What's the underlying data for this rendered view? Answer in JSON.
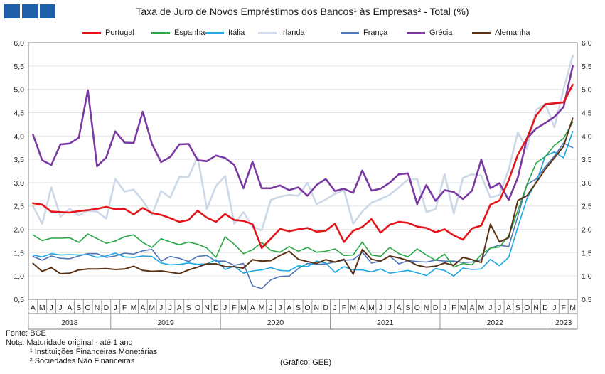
{
  "title_text": "Taxa de Juro de Novos Empréstimos dos Bancos¹ às Empresas² - Total (%)",
  "logo_colors": [
    "#1f5fa8",
    "#1f5fa8",
    "#1f5fa8"
  ],
  "notes": {
    "source": "Fonte:  BCE",
    "note": "Nota:  Maturidade original - até 1 ano",
    "footnote1": "¹ Instituições Financeiras Monetárias",
    "footnote2": "² Sociedades Não Financeiras",
    "credit": "(Gráfico: GEE)"
  },
  "chart_data": {
    "type": "line",
    "title": "Taxa de Juro de Novos Empréstimos dos Bancos¹ às Empresas² - Total (%)",
    "ylim": [
      0.5,
      6.0
    ],
    "yticks": [
      "0,5",
      "1,0",
      "1,5",
      "2,0",
      "2,5",
      "3,0",
      "3,5",
      "4,0",
      "4,5",
      "5,0",
      "5,5",
      "6,0"
    ],
    "ytick_values": [
      0.5,
      1.0,
      1.5,
      2.0,
      2.5,
      3.0,
      3.5,
      4.0,
      4.5,
      5.0,
      5.5,
      6.0
    ],
    "grid": true,
    "legend_position": "top",
    "months": [
      "A",
      "M",
      "J",
      "J",
      "A",
      "S",
      "O",
      "N",
      "D",
      "J",
      "F",
      "M",
      "A",
      "M",
      "J",
      "J",
      "A",
      "S",
      "O",
      "N",
      "D",
      "J",
      "F",
      "M",
      "A",
      "M",
      "J",
      "J",
      "A",
      "S",
      "O",
      "N",
      "D",
      "J",
      "F",
      "M",
      "A",
      "M",
      "J",
      "J",
      "A",
      "S",
      "O",
      "N",
      "D",
      "J",
      "F",
      "M",
      "A",
      "M",
      "J",
      "J",
      "A",
      "S",
      "O",
      "N",
      "D",
      "J",
      "F",
      "M"
    ],
    "years": [
      {
        "label": "2018",
        "start": 0,
        "end": 8
      },
      {
        "label": "2019",
        "start": 9,
        "end": 20
      },
      {
        "label": "2020",
        "start": 21,
        "end": 32
      },
      {
        "label": "2021",
        "start": 33,
        "end": 44
      },
      {
        "label": "2022",
        "start": 45,
        "end": 56
      },
      {
        "label": "2023",
        "start": 57,
        "end": 59
      }
    ],
    "x": [
      "2018-04",
      "2018-05",
      "2018-06",
      "2018-07",
      "2018-08",
      "2018-09",
      "2018-10",
      "2018-11",
      "2018-12",
      "2019-01",
      "2019-02",
      "2019-03",
      "2019-04",
      "2019-05",
      "2019-06",
      "2019-07",
      "2019-08",
      "2019-09",
      "2019-10",
      "2019-11",
      "2019-12",
      "2020-01",
      "2020-02",
      "2020-03",
      "2020-04",
      "2020-05",
      "2020-06",
      "2020-07",
      "2020-08",
      "2020-09",
      "2020-10",
      "2020-11",
      "2020-12",
      "2021-01",
      "2021-02",
      "2021-03",
      "2021-04",
      "2021-05",
      "2021-06",
      "2021-07",
      "2021-08",
      "2021-09",
      "2021-10",
      "2021-11",
      "2021-12",
      "2022-01",
      "2022-02",
      "2022-03",
      "2022-04",
      "2022-05",
      "2022-06",
      "2022-07",
      "2022-08",
      "2022-09",
      "2022-10",
      "2022-11",
      "2022-12",
      "2023-01",
      "2023-02",
      "2023-03"
    ],
    "series": [
      {
        "name": "Portugal",
        "color": "#e3151a",
        "width": 2.6,
        "values": [
          2.56,
          2.53,
          2.38,
          2.37,
          2.36,
          2.39,
          2.41,
          2.44,
          2.48,
          2.43,
          2.44,
          2.32,
          2.46,
          2.35,
          2.31,
          2.24,
          2.16,
          2.2,
          2.4,
          2.25,
          2.16,
          2.33,
          2.2,
          2.18,
          2.11,
          1.6,
          1.8,
          2.01,
          1.96,
          2.0,
          2.03,
          1.95,
          1.97,
          2.12,
          1.73,
          1.97,
          2.05,
          2.22,
          1.93,
          2.1,
          2.16,
          2.14,
          2.06,
          2.03,
          1.94,
          2.0,
          1.87,
          1.78,
          2.02,
          2.08,
          2.53,
          2.62,
          3.05,
          3.6,
          3.95,
          4.44,
          4.68,
          4.7,
          4.72,
          5.1
        ]
      },
      {
        "name": "Espanha",
        "color": "#28a745",
        "width": 1.6,
        "values": [
          1.88,
          1.76,
          1.81,
          1.81,
          1.82,
          1.72,
          1.9,
          1.8,
          1.7,
          1.75,
          1.84,
          1.88,
          1.72,
          1.61,
          1.8,
          1.73,
          1.67,
          1.73,
          1.68,
          1.6,
          1.4,
          1.84,
          1.68,
          1.48,
          1.56,
          1.72,
          1.55,
          1.51,
          1.63,
          1.53,
          1.61,
          1.51,
          1.53,
          1.58,
          1.44,
          1.45,
          1.73,
          1.45,
          1.42,
          1.61,
          1.48,
          1.41,
          1.58,
          1.45,
          1.34,
          1.47,
          1.19,
          1.27,
          1.24,
          1.46,
          1.6,
          1.62,
          1.86,
          2.4,
          2.96,
          3.42,
          3.56,
          3.8,
          3.95,
          4.3
        ]
      },
      {
        "name": "Itália",
        "color": "#1ba7e0",
        "width": 1.6,
        "values": [
          1.45,
          1.41,
          1.48,
          1.45,
          1.46,
          1.45,
          1.46,
          1.4,
          1.43,
          1.49,
          1.41,
          1.4,
          1.43,
          1.42,
          1.28,
          1.24,
          1.25,
          1.28,
          1.25,
          1.26,
          1.35,
          1.14,
          1.21,
          1.06,
          1.11,
          1.13,
          1.18,
          1.12,
          1.11,
          1.22,
          1.2,
          1.32,
          1.28,
          1.08,
          1.2,
          1.13,
          1.13,
          1.09,
          1.15,
          1.06,
          1.09,
          1.12,
          1.07,
          1.01,
          1.16,
          1.12,
          1.0,
          1.17,
          1.14,
          1.15,
          1.36,
          1.22,
          1.4,
          2.05,
          2.66,
          3.0,
          3.57,
          3.66,
          3.53,
          4.1
        ]
      },
      {
        "name": "Irlanda",
        "color": "#ccd8e6",
        "width": 2.6,
        "values": [
          2.5,
          2.12,
          2.9,
          2.27,
          2.44,
          2.3,
          2.4,
          2.38,
          2.23,
          3.08,
          2.81,
          2.85,
          2.62,
          2.31,
          2.82,
          2.68,
          3.12,
          3.12,
          3.56,
          2.44,
          2.93,
          3.14,
          2.12,
          2.37,
          2.06,
          1.98,
          2.63,
          2.7,
          2.74,
          2.72,
          3.0,
          2.54,
          2.64,
          2.76,
          2.84,
          2.12,
          2.38,
          2.57,
          2.65,
          2.74,
          2.9,
          3.07,
          3.08,
          2.37,
          2.43,
          3.18,
          2.34,
          3.1,
          3.18,
          3.15,
          2.68,
          2.74,
          3.28,
          4.08,
          3.72,
          4.56,
          4.69,
          4.19,
          5.0,
          5.72
        ]
      },
      {
        "name": "França",
        "color": "#4f76b8",
        "width": 1.6,
        "values": [
          1.42,
          1.34,
          1.43,
          1.38,
          1.37,
          1.43,
          1.48,
          1.48,
          1.4,
          1.43,
          1.49,
          1.47,
          1.54,
          1.57,
          1.32,
          1.42,
          1.38,
          1.31,
          1.42,
          1.44,
          1.32,
          1.32,
          1.23,
          1.27,
          0.79,
          0.73,
          0.92,
          0.99,
          1.0,
          1.16,
          1.27,
          1.25,
          1.26,
          1.3,
          1.34,
          1.35,
          1.51,
          1.28,
          1.32,
          1.43,
          1.26,
          1.33,
          1.31,
          1.3,
          1.34,
          1.32,
          1.32,
          1.29,
          1.3,
          1.35,
          1.6,
          1.66,
          1.63,
          2.28,
          2.96,
          3.08,
          3.34,
          3.57,
          3.85,
          3.75
        ]
      },
      {
        "name": "Grécia",
        "color": "#7a3aa2",
        "width": 2.6,
        "values": [
          4.03,
          3.48,
          3.38,
          3.82,
          3.84,
          3.96,
          4.98,
          3.35,
          3.54,
          4.1,
          3.86,
          3.85,
          4.52,
          3.83,
          3.44,
          3.55,
          3.82,
          3.83,
          3.48,
          3.46,
          3.58,
          3.53,
          3.38,
          2.88,
          3.45,
          2.88,
          2.88,
          2.94,
          2.84,
          2.9,
          2.72,
          2.95,
          3.08,
          2.82,
          2.87,
          2.78,
          3.26,
          2.83,
          2.87,
          3.0,
          3.18,
          3.2,
          2.54,
          2.95,
          2.61,
          2.84,
          2.8,
          2.65,
          2.83,
          3.49,
          2.88,
          2.99,
          2.63,
          3.11,
          3.95,
          4.16,
          4.28,
          4.41,
          4.62,
          5.5
        ]
      },
      {
        "name": "Alemanha",
        "color": "#5a3113",
        "width": 2.0,
        "values": [
          1.27,
          1.1,
          1.18,
          1.05,
          1.06,
          1.13,
          1.15,
          1.15,
          1.16,
          1.14,
          1.15,
          1.21,
          1.12,
          1.1,
          1.11,
          1.08,
          1.05,
          1.13,
          1.19,
          1.26,
          1.26,
          1.2,
          1.2,
          1.17,
          1.35,
          1.32,
          1.33,
          1.44,
          1.53,
          1.36,
          1.31,
          1.27,
          1.35,
          1.3,
          1.36,
          1.04,
          1.57,
          1.36,
          1.32,
          1.43,
          1.39,
          1.33,
          1.23,
          1.19,
          1.21,
          1.28,
          1.23,
          1.4,
          1.35,
          1.29,
          2.11,
          1.73,
          1.82,
          2.62,
          2.72,
          3.0,
          3.29,
          3.53,
          3.78,
          4.38
        ]
      }
    ]
  }
}
